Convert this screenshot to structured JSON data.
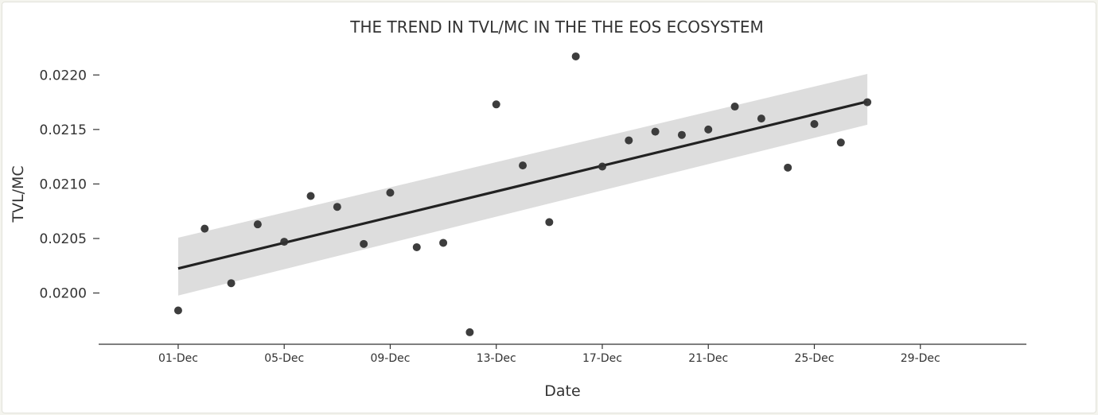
{
  "chart_data": {
    "type": "scatter",
    "title": "THE TREND IN TVL/MC IN THE THE EOS ECOSYSTEM",
    "xlabel": "Date",
    "ylabel": "TVL/MC",
    "xlim": [
      "2023-11-28",
      "2024-01-02"
    ],
    "ylim": [
      0.01953,
      0.02225
    ],
    "x_ticks": [
      "01-Dec",
      "05-Dec",
      "09-Dec",
      "13-Dec",
      "17-Dec",
      "21-Dec",
      "25-Dec",
      "29-Dec"
    ],
    "y_ticks": [
      "0.0200",
      "0.0205",
      "0.0210",
      "0.0215",
      "0.0220"
    ],
    "grid": false,
    "colors": {
      "points": "#333333",
      "trend": "#222222",
      "band": "#dddddd"
    },
    "points": [
      {
        "x": "2023-12-01",
        "y": 0.01984
      },
      {
        "x": "2023-12-02",
        "y": 0.02059
      },
      {
        "x": "2023-12-03",
        "y": 0.02009
      },
      {
        "x": "2023-12-04",
        "y": 0.02063
      },
      {
        "x": "2023-12-05",
        "y": 0.02047
      },
      {
        "x": "2023-12-06",
        "y": 0.02089
      },
      {
        "x": "2023-12-07",
        "y": 0.02079
      },
      {
        "x": "2023-12-08",
        "y": 0.02045
      },
      {
        "x": "2023-12-09",
        "y": 0.02092
      },
      {
        "x": "2023-12-10",
        "y": 0.02042
      },
      {
        "x": "2023-12-11",
        "y": 0.02046
      },
      {
        "x": "2023-12-12",
        "y": 0.01964
      },
      {
        "x": "2023-12-13",
        "y": 0.02173
      },
      {
        "x": "2023-12-14",
        "y": 0.02117
      },
      {
        "x": "2023-12-15",
        "y": 0.02065
      },
      {
        "x": "2023-12-16",
        "y": 0.02217
      },
      {
        "x": "2023-12-17",
        "y": 0.02116
      },
      {
        "x": "2023-12-18",
        "y": 0.0214
      },
      {
        "x": "2023-12-19",
        "y": 0.02148
      },
      {
        "x": "2023-12-20",
        "y": 0.02145
      },
      {
        "x": "2023-12-21",
        "y": 0.0215
      },
      {
        "x": "2023-12-22",
        "y": 0.02171
      },
      {
        "x": "2023-12-23",
        "y": 0.0216
      },
      {
        "x": "2023-12-24",
        "y": 0.02115
      },
      {
        "x": "2023-12-25",
        "y": 0.02155
      },
      {
        "x": "2023-12-26",
        "y": 0.02138
      },
      {
        "x": "2023-12-27",
        "y": 0.02175
      }
    ],
    "trend_line": [
      {
        "x": "2023-12-01",
        "y": 0.020225
      },
      {
        "x": "2023-12-27",
        "y": 0.021756
      }
    ],
    "confidence_band": {
      "upper": [
        {
          "x": "2023-12-01",
          "y": 0.020507
        },
        {
          "x": "2023-12-27",
          "y": 0.022009
        }
      ],
      "lower": [
        {
          "x": "2023-12-01",
          "y": 0.019977
        },
        {
          "x": "2023-12-27",
          "y": 0.021544
        }
      ]
    }
  }
}
